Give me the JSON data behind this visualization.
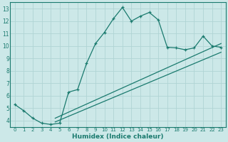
{
  "xlabel": "Humidex (Indice chaleur)",
  "bg_color": "#cce8e8",
  "line_color": "#1a7a6e",
  "grid_color": "#b0d4d4",
  "xlim": [
    -0.5,
    23.5
  ],
  "ylim": [
    3.5,
    13.5
  ],
  "xticks": [
    0,
    1,
    2,
    3,
    4,
    5,
    6,
    7,
    8,
    9,
    10,
    11,
    12,
    13,
    14,
    15,
    16,
    17,
    18,
    19,
    20,
    21,
    22,
    23
  ],
  "yticks": [
    4,
    5,
    6,
    7,
    8,
    9,
    10,
    11,
    12,
    13
  ],
  "curve1_x": [
    0,
    1,
    2,
    3,
    4,
    5,
    6,
    7,
    8,
    9,
    10,
    11,
    12,
    13,
    14,
    15,
    16,
    17,
    18,
    19,
    20,
    21,
    22,
    23
  ],
  "curve1_y": [
    5.3,
    4.8,
    4.2,
    3.8,
    3.7,
    3.8,
    6.3,
    6.5,
    8.6,
    10.2,
    11.1,
    12.2,
    13.1,
    12.0,
    12.4,
    12.7,
    12.1,
    9.9,
    9.85,
    9.7,
    9.85,
    10.8,
    10.0,
    9.9
  ],
  "line2_x": [
    4.5,
    23
  ],
  "line2_y": [
    4.2,
    10.2
  ],
  "line3_x": [
    4.5,
    23
  ],
  "line3_y": [
    3.9,
    9.5
  ]
}
